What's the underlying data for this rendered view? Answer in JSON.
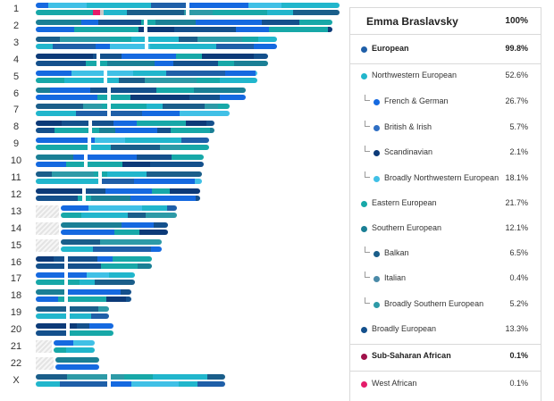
{
  "colors": {
    "european": "#1f5fa8",
    "northwestern": "#21b6cc",
    "french_german": "#1569e0",
    "british_irish": "#2f6fc4",
    "scandinavian": "#0c3a78",
    "broadly_nw": "#40c0e6",
    "eastern": "#17a8a8",
    "southern": "#1a7f95",
    "balkan": "#1a5e8a",
    "italian": "#4a8aa8",
    "broadly_southern": "#2d9aa7",
    "broadly_european": "#14508c",
    "sub_saharan": "#a0124a",
    "west_african": "#e51c6a",
    "unassigned": "#c9c9c9"
  },
  "chromosomes": [
    {
      "label": "1"
    },
    {
      "label": "2"
    },
    {
      "label": "3"
    },
    {
      "label": "4"
    },
    {
      "label": "5"
    },
    {
      "label": "6"
    },
    {
      "label": "7"
    },
    {
      "label": "8"
    },
    {
      "label": "9"
    },
    {
      "label": "10"
    },
    {
      "label": "11"
    },
    {
      "label": "12"
    },
    {
      "label": "13"
    },
    {
      "label": "14"
    },
    {
      "label": "15"
    },
    {
      "label": "16"
    },
    {
      "label": "17"
    },
    {
      "label": "18"
    },
    {
      "label": "19"
    },
    {
      "label": "20"
    },
    {
      "label": "21"
    },
    {
      "label": "22"
    },
    {
      "label": "X"
    }
  ],
  "panel": {
    "name": "Emma Braslavsky",
    "total": "100%",
    "rows": [
      {
        "label": "European",
        "pct": "99.8%",
        "color": "#1f5fa8",
        "level": 0,
        "bold": true
      },
      {
        "label": "Northwestern European",
        "pct": "52.6%",
        "color": "#21b6cc",
        "level": 0,
        "bold": false
      },
      {
        "label": "French & German",
        "pct": "26.7%",
        "color": "#1569e0",
        "level": 1,
        "bold": false
      },
      {
        "label": "British & Irish",
        "pct": "5.7%",
        "color": "#2f6fc4",
        "level": 1,
        "bold": false
      },
      {
        "label": "Scandinavian",
        "pct": "2.1%",
        "color": "#0c3a78",
        "level": 1,
        "bold": false
      },
      {
        "label": "Broadly Northwestern European",
        "pct": "18.1%",
        "color": "#40c0e6",
        "level": 1,
        "bold": false
      },
      {
        "label": "Eastern European",
        "pct": "21.7%",
        "color": "#17a8a8",
        "level": 0,
        "bold": false
      },
      {
        "label": "Southern European",
        "pct": "12.1%",
        "color": "#1a7f95",
        "level": 0,
        "bold": false
      },
      {
        "label": "Balkan",
        "pct": "6.5%",
        "color": "#1a5e8a",
        "level": 1,
        "bold": false
      },
      {
        "label": "Italian",
        "pct": "0.4%",
        "color": "#4a8aa8",
        "level": 1,
        "bold": false
      },
      {
        "label": "Broadly Southern European",
        "pct": "5.2%",
        "color": "#2d9aa7",
        "level": 1,
        "bold": false
      },
      {
        "label": "Broadly European",
        "pct": "13.3%",
        "color": "#14508c",
        "level": 0,
        "bold": false
      },
      {
        "label": "Sub-Saharan African",
        "pct": "0.1%",
        "color": "#a0124a",
        "level": 0,
        "bold": true
      },
      {
        "label": "West African",
        "pct": "0.1%",
        "color": "#e51c6a",
        "level": 0,
        "bold": false
      }
    ]
  }
}
